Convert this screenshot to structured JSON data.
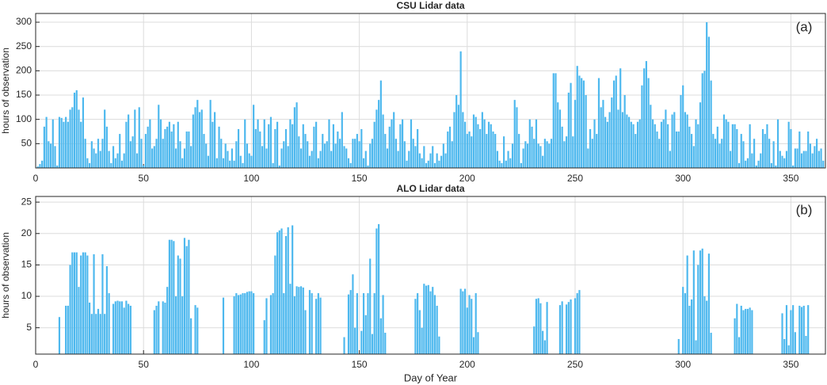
{
  "chart_data": [
    {
      "type": "bar",
      "title": "CSU Lidar data",
      "ylabel": "hours of observation",
      "annotation": "(a)",
      "color": "#4db8ee",
      "grid": true,
      "xlim": [
        0,
        366
      ],
      "xticks": [
        0,
        50,
        100,
        150,
        200,
        250,
        300,
        350
      ],
      "ylim": [
        0,
        318
      ],
      "yticks": [
        50,
        100,
        150,
        200,
        250,
        300
      ],
      "x": [
        1,
        2,
        3,
        4,
        5,
        6,
        7,
        8,
        9,
        10,
        11,
        12,
        13,
        14,
        15,
        16,
        17,
        18,
        19,
        20,
        21,
        22,
        23,
        24,
        25,
        26,
        27,
        28,
        29,
        30,
        31,
        32,
        33,
        34,
        35,
        36,
        37,
        38,
        39,
        40,
        41,
        42,
        43,
        44,
        45,
        46,
        47,
        48,
        49,
        50,
        51,
        52,
        53,
        54,
        55,
        56,
        57,
        58,
        59,
        60,
        61,
        62,
        63,
        64,
        65,
        66,
        67,
        68,
        69,
        70,
        71,
        72,
        73,
        74,
        75,
        76,
        77,
        78,
        79,
        80,
        81,
        82,
        83,
        84,
        85,
        86,
        87,
        88,
        89,
        90,
        91,
        92,
        93,
        94,
        95,
        96,
        97,
        98,
        99,
        100,
        101,
        102,
        103,
        104,
        105,
        106,
        107,
        108,
        109,
        110,
        111,
        112,
        113,
        114,
        115,
        116,
        117,
        118,
        119,
        120,
        121,
        122,
        123,
        124,
        125,
        126,
        127,
        128,
        129,
        130,
        131,
        132,
        133,
        134,
        135,
        136,
        137,
        138,
        139,
        140,
        141,
        142,
        143,
        144,
        145,
        146,
        147,
        148,
        149,
        150,
        151,
        152,
        153,
        154,
        155,
        156,
        157,
        158,
        159,
        160,
        161,
        162,
        163,
        164,
        165,
        166,
        167,
        168,
        169,
        170,
        171,
        172,
        173,
        174,
        175,
        176,
        177,
        178,
        179,
        180,
        181,
        182,
        183,
        184,
        185,
        186,
        187,
        188,
        189,
        190,
        191,
        192,
        193,
        194,
        195,
        196,
        197,
        198,
        199,
        200,
        201,
        202,
        203,
        204,
        205,
        206,
        207,
        208,
        209,
        210,
        211,
        212,
        213,
        214,
        215,
        216,
        217,
        218,
        219,
        220,
        221,
        222,
        223,
        224,
        225,
        226,
        227,
        228,
        229,
        230,
        231,
        232,
        233,
        234,
        235,
        236,
        237,
        238,
        239,
        240,
        241,
        242,
        243,
        244,
        245,
        246,
        247,
        248,
        249,
        250,
        251,
        252,
        253,
        254,
        255,
        256,
        257,
        258,
        259,
        260,
        261,
        262,
        263,
        264,
        265,
        266,
        267,
        268,
        269,
        270,
        271,
        272,
        273,
        274,
        275,
        276,
        277,
        278,
        279,
        280,
        281,
        282,
        283,
        284,
        285,
        286,
        287,
        288,
        289,
        290,
        291,
        292,
        293,
        294,
        295,
        296,
        297,
        298,
        299,
        300,
        301,
        302,
        303,
        304,
        305,
        306,
        307,
        308,
        309,
        310,
        311,
        312,
        313,
        314,
        315,
        316,
        317,
        318,
        319,
        320,
        321,
        322,
        323,
        324,
        325,
        326,
        327,
        328,
        329,
        330,
        331,
        332,
        333,
        334,
        335,
        336,
        337,
        338,
        339,
        340,
        341,
        342,
        343,
        344,
        345,
        346,
        347,
        348,
        349,
        350,
        351,
        352,
        353,
        354,
        355,
        356,
        357,
        358,
        359,
        360,
        361,
        362,
        363,
        364,
        365
      ],
      "values": [
        3,
        8,
        15,
        85,
        105,
        55,
        50,
        100,
        45,
        5,
        105,
        103,
        95,
        105,
        95,
        120,
        125,
        155,
        160,
        120,
        95,
        145,
        60,
        20,
        10,
        55,
        40,
        30,
        60,
        35,
        60,
        120,
        85,
        35,
        10,
        45,
        20,
        30,
        70,
        15,
        30,
        95,
        110,
        55,
        65,
        120,
        30,
        125,
        60,
        5,
        70,
        85,
        100,
        40,
        45,
        60,
        130,
        100,
        60,
        80,
        85,
        95,
        75,
        90,
        40,
        95,
        55,
        20,
        40,
        75,
        75,
        45,
        110,
        125,
        140,
        115,
        120,
        70,
        50,
        25,
        140,
        95,
        115,
        20,
        85,
        60,
        20,
        50,
        35,
        15,
        40,
        15,
        55,
        80,
        25,
        10,
        100,
        50,
        30,
        25,
        130,
        80,
        100,
        75,
        45,
        100,
        40,
        90,
        105,
        10,
        80,
        95,
        5,
        40,
        55,
        80,
        45,
        100,
        90,
        125,
        135,
        65,
        40,
        90,
        70,
        55,
        25,
        35,
        85,
        95,
        20,
        35,
        70,
        50,
        55,
        100,
        35,
        90,
        50,
        75,
        60,
        115,
        45,
        40,
        20,
        10,
        60,
        60,
        70,
        55,
        80,
        20,
        35,
        5,
        50,
        60,
        95,
        120,
        140,
        180,
        110,
        70,
        40,
        85,
        100,
        115,
        60,
        35,
        90,
        100,
        55,
        15,
        35,
        100,
        60,
        45,
        80,
        30,
        20,
        45,
        10,
        15,
        30,
        45,
        10,
        30,
        15,
        25,
        50,
        30,
        75,
        85,
        55,
        115,
        150,
        130,
        240,
        115,
        95,
        70,
        75,
        65,
        110,
        105,
        90,
        80,
        115,
        100,
        70,
        95,
        90,
        75,
        70,
        35,
        15,
        10,
        65,
        15,
        35,
        20,
        50,
        140,
        125,
        70,
        10,
        40,
        55,
        50,
        100,
        85,
        60,
        100,
        50,
        45,
        25,
        60,
        55,
        50,
        60,
        195,
        195,
        135,
        120,
        85,
        55,
        65,
        155,
        175,
        65,
        140,
        210,
        190,
        185,
        180,
        150,
        40,
        80,
        60,
        100,
        70,
        185,
        125,
        140,
        105,
        95,
        115,
        145,
        180,
        190,
        120,
        205,
        115,
        150,
        110,
        105,
        95,
        90,
        70,
        95,
        100,
        170,
        205,
        220,
        185,
        130,
        100,
        90,
        75,
        60,
        95,
        100,
        120,
        90,
        35,
        110,
        115,
        75,
        75,
        150,
        170,
        115,
        110,
        85,
        70,
        45,
        100,
        90,
        135,
        195,
        200,
        300,
        270,
        180,
        70,
        60,
        85,
        50,
        60,
        110,
        100,
        95,
        35,
        90,
        90,
        80,
        10,
        70,
        55,
        15,
        20,
        90,
        30,
        60,
        5,
        15,
        30,
        80,
        70,
        90,
        60,
        10,
        55,
        5,
        100,
        35,
        25,
        20,
        35,
        95,
        80,
        5,
        40,
        40,
        75,
        30,
        35,
        35,
        75,
        50,
        30,
        45,
        60,
        35,
        40,
        15
      ]
    },
    {
      "type": "bar",
      "title": "ALO Lidar data",
      "ylabel": "hours of observation",
      "xlabel": "Day of Year",
      "annotation": "(b)",
      "color": "#4db8ee",
      "grid": true,
      "xlim": [
        0,
        366
      ],
      "xticks": [
        0,
        50,
        100,
        150,
        200,
        250,
        300,
        350
      ],
      "ylim": [
        0.8,
        25.9
      ],
      "yticks": [
        5,
        10,
        15,
        20,
        25
      ],
      "x": [
        11,
        14,
        15,
        16,
        17,
        18,
        19,
        20,
        21,
        22,
        23,
        24,
        25,
        26,
        27,
        28,
        29,
        30,
        31,
        32,
        33,
        34,
        36,
        37,
        38,
        39,
        40,
        41,
        42,
        43,
        44,
        55,
        56,
        57,
        59,
        60,
        61,
        62,
        63,
        64,
        65,
        66,
        67,
        68,
        69,
        70,
        71,
        72,
        74,
        75,
        87,
        92,
        93,
        94,
        95,
        96,
        97,
        98,
        99,
        100,
        101,
        106,
        107,
        109,
        110,
        111,
        112,
        113,
        114,
        115,
        116,
        117,
        118,
        119,
        120,
        121,
        122,
        123,
        124,
        125,
        127,
        128,
        130,
        131,
        132,
        143,
        145,
        146,
        147,
        148,
        149,
        151,
        152,
        153,
        154,
        155,
        156,
        157,
        158,
        159,
        160,
        161,
        162,
        176,
        177,
        178,
        179,
        180,
        181,
        182,
        183,
        184,
        185,
        186,
        187,
        197,
        198,
        199,
        200,
        201,
        202,
        203,
        204,
        205,
        231,
        232,
        233,
        234,
        235,
        236,
        237,
        243,
        244,
        246,
        247,
        248,
        250,
        251,
        252,
        298,
        300,
        301,
        302,
        303,
        304,
        305,
        306,
        307,
        308,
        309,
        310,
        311,
        312,
        313,
        324,
        325,
        326,
        327,
        328,
        329,
        330,
        331,
        332,
        346,
        347,
        348,
        349,
        350,
        351,
        352,
        354,
        355,
        356,
        357,
        358
      ],
      "values": [
        6.7,
        8.5,
        8.5,
        15,
        17,
        17,
        17,
        11.5,
        16.5,
        17,
        17,
        16.5,
        9,
        7.2,
        16.7,
        7.2,
        8,
        7.2,
        16.7,
        7.2,
        14.8,
        10.5,
        8.8,
        9.2,
        9.3,
        9.2,
        9.2,
        8.2,
        9.3,
        8.8,
        8.5,
        7.8,
        8.5,
        9.2,
        9.2,
        9,
        11.5,
        19,
        19,
        18.8,
        10,
        16.5,
        16,
        10,
        19.3,
        18,
        19,
        6.5,
        8.6,
        8.2,
        9.8,
        10,
        10.5,
        10.2,
        10.3,
        10.5,
        10.5,
        10.7,
        10.8,
        10.8,
        10.5,
        6.2,
        9.7,
        10.2,
        10.5,
        16.5,
        20.2,
        20.5,
        20.8,
        10.5,
        19.6,
        21,
        12,
        21.3,
        10,
        11.6,
        11.5,
        11.6,
        11.4,
        7.8,
        11,
        10.5,
        9.6,
        10.5,
        9.8,
        3.5,
        10.3,
        11,
        13.5,
        5,
        10.5,
        4.5,
        10.5,
        7,
        10.5,
        16,
        4,
        10.5,
        20.8,
        21.5,
        6.5,
        10.2,
        4.2,
        9.6,
        10.5,
        7.8,
        5,
        12,
        11.7,
        11.8,
        10.8,
        11.5,
        10.2,
        8.5,
        3.6,
        11.2,
        10.8,
        11.2,
        8.2,
        10.2,
        9.6,
        3.5,
        10.5,
        4.3,
        5.2,
        9.6,
        9.7,
        8.9,
        4.5,
        3,
        9.1,
        8.6,
        9.2,
        8.7,
        9.1,
        9.5,
        9.7,
        10.5,
        11,
        3.2,
        11.5,
        10.5,
        16.5,
        8.5,
        9.5,
        17.3,
        3,
        15,
        17.3,
        17.6,
        10,
        9.3,
        16.8,
        4.2,
        6.5,
        8.8,
        3.5,
        8.5,
        7.8,
        8,
        8,
        8.2,
        7.8,
        7.3,
        3.2,
        8.6,
        2.2,
        7.8,
        8.6,
        4.3,
        8.5,
        8.3,
        8.5,
        3.7,
        8.6
      ]
    }
  ]
}
